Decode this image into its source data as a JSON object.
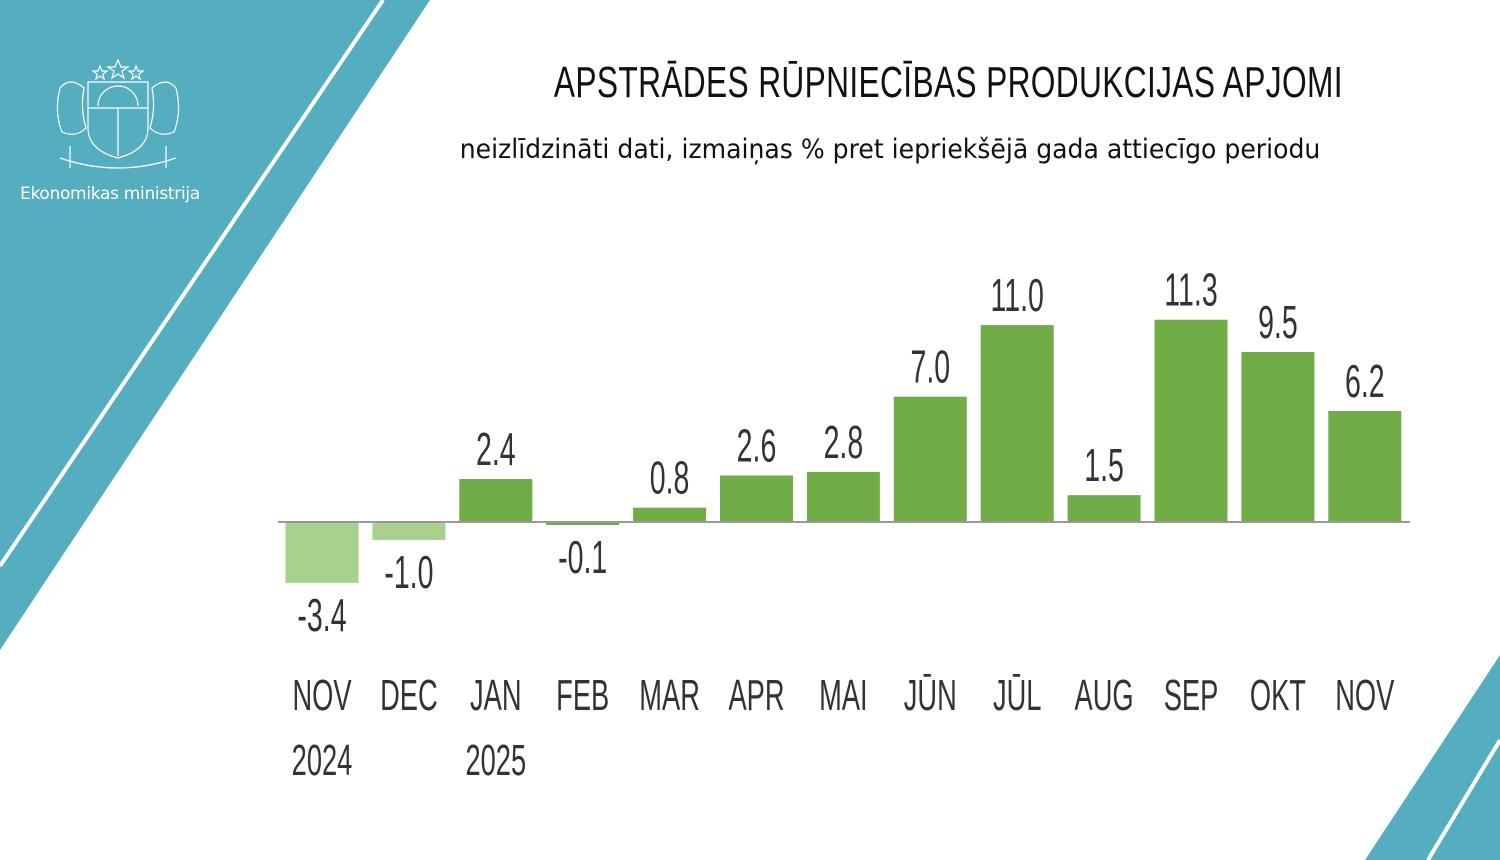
{
  "header": {
    "title": "APSTRĀDES RŪPNIECĪBAS PRODUKCIJAS APJOMI",
    "subtitle": "neizlīdzināti dati, izmaiņas % pret iepriekšējā gada attiecīgo periodu",
    "organization": "Ekonomikas ministrija",
    "logo_icon": "latvia-coat-of-arms-icon"
  },
  "colors": {
    "accent_teal": "#55aebf",
    "bar_positive": "#70ad47",
    "bar_negative": "#a9d18e",
    "axis": "#999999"
  },
  "chart_data": {
    "type": "bar",
    "title": "APSTRĀDES RŪPNIECĪBAS PRODUKCIJAS APJOMI",
    "subtitle": "neizlīdzināti dati, izmaiņas % pret iepriekšējā gada attiecīgo periodu",
    "categories": [
      "NOV",
      "DEC",
      "JAN",
      "FEB",
      "MAR",
      "APR",
      "MAI",
      "JŪN",
      "JŪL",
      "AUG",
      "SEP",
      "OKT",
      "NOV"
    ],
    "year_labels": [
      "2024",
      "",
      "2025",
      "",
      "",
      "",
      "",
      "",
      "",
      "",
      "",
      "",
      ""
    ],
    "values": [
      -3.4,
      -1.0,
      2.4,
      -0.1,
      0.8,
      2.6,
      2.8,
      7.0,
      11.0,
      1.5,
      11.3,
      9.5,
      6.2
    ],
    "data_labels": [
      "-3.4",
      "-1.0",
      "2.4",
      "-0.1",
      "0.8",
      "2.6",
      "2.8",
      "7.0",
      "11.0",
      "1.5",
      "11.3",
      "9.5",
      "6.2"
    ],
    "bar_colors": [
      "#a9d18e",
      "#a9d18e",
      "#70ad47",
      "#70ad47",
      "#70ad47",
      "#70ad47",
      "#70ad47",
      "#70ad47",
      "#70ad47",
      "#70ad47",
      "#70ad47",
      "#70ad47",
      "#70ad47"
    ],
    "xlabel": "",
    "ylabel": "",
    "ylim": [
      -3.4,
      11.3
    ],
    "grid": false,
    "legend": "none"
  }
}
